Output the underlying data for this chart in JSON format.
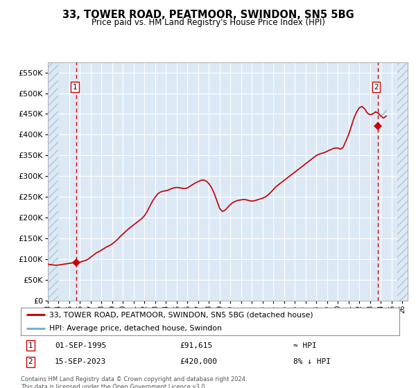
{
  "title": "33, TOWER ROAD, PEATMOOR, SWINDON, SN5 5BG",
  "subtitle": "Price paid vs. HM Land Registry's House Price Index (HPI)",
  "ylim": [
    0,
    575000
  ],
  "yticks": [
    0,
    50000,
    100000,
    150000,
    200000,
    250000,
    300000,
    350000,
    400000,
    450000,
    500000,
    550000
  ],
  "xlim_start": 1993.0,
  "xlim_end": 2026.5,
  "background_color": "#dce9f5",
  "hatch_color": "#aec6d8",
  "grid_color": "#ffffff",
  "line_color_hpi": "#cc0000",
  "line_color_hpi_index": "#7bafd4",
  "point1_x": 1995.67,
  "point1_y": 91615,
  "point2_x": 2023.71,
  "point2_y": 420000,
  "marker_color": "#cc0000",
  "vline_color": "#cc0000",
  "box_color": "#cc0000",
  "legend_line1": "33, TOWER ROAD, PEATMOOR, SWINDON, SN5 5BG (detached house)",
  "legend_line2": "HPI: Average price, detached house, Swindon",
  "annotation1_date": "01-SEP-1995",
  "annotation1_price": "£91,615",
  "annotation1_hpi": "≈ HPI",
  "annotation2_date": "15-SEP-2023",
  "annotation2_price": "£420,000",
  "annotation2_hpi": "8% ↓ HPI",
  "footer": "Contains HM Land Registry data © Crown copyright and database right 2024.\nThis data is licensed under the Open Government Licence v3.0.",
  "hpi_data_x": [
    1993.0,
    1993.25,
    1993.5,
    1993.75,
    1994.0,
    1994.25,
    1994.5,
    1994.75,
    1995.0,
    1995.25,
    1995.5,
    1995.75,
    1996.0,
    1996.25,
    1996.5,
    1996.75,
    1997.0,
    1997.25,
    1997.5,
    1997.75,
    1998.0,
    1998.25,
    1998.5,
    1998.75,
    1999.0,
    1999.25,
    1999.5,
    1999.75,
    2000.0,
    2000.25,
    2000.5,
    2000.75,
    2001.0,
    2001.25,
    2001.5,
    2001.75,
    2002.0,
    2002.25,
    2002.5,
    2002.75,
    2003.0,
    2003.25,
    2003.5,
    2003.75,
    2004.0,
    2004.25,
    2004.5,
    2004.75,
    2005.0,
    2005.25,
    2005.5,
    2005.75,
    2006.0,
    2006.25,
    2006.5,
    2006.75,
    2007.0,
    2007.25,
    2007.5,
    2007.75,
    2008.0,
    2008.25,
    2008.5,
    2008.75,
    2009.0,
    2009.25,
    2009.5,
    2009.75,
    2010.0,
    2010.25,
    2010.5,
    2010.75,
    2011.0,
    2011.25,
    2011.5,
    2011.75,
    2012.0,
    2012.25,
    2012.5,
    2012.75,
    2013.0,
    2013.25,
    2013.5,
    2013.75,
    2014.0,
    2014.25,
    2014.5,
    2014.75,
    2015.0,
    2015.25,
    2015.5,
    2015.75,
    2016.0,
    2016.25,
    2016.5,
    2016.75,
    2017.0,
    2017.25,
    2017.5,
    2017.75,
    2018.0,
    2018.25,
    2018.5,
    2018.75,
    2019.0,
    2019.25,
    2019.5,
    2019.75,
    2020.0,
    2020.25,
    2020.5,
    2020.75,
    2021.0,
    2021.25,
    2021.5,
    2021.75,
    2022.0,
    2022.25,
    2022.5,
    2022.75,
    2023.0,
    2023.25,
    2023.5,
    2023.75,
    2024.0,
    2024.25,
    2024.5
  ],
  "hpi_data_y": [
    88000,
    87000,
    86000,
    85500,
    86000,
    87000,
    88000,
    89000,
    90000,
    91000,
    91500,
    92000,
    93000,
    95000,
    97000,
    100000,
    105000,
    110000,
    115000,
    118000,
    122000,
    126000,
    130000,
    133000,
    137000,
    142000,
    148000,
    155000,
    161000,
    167000,
    173000,
    178000,
    183000,
    188000,
    193000,
    198000,
    205000,
    215000,
    228000,
    240000,
    250000,
    258000,
    262000,
    264000,
    265000,
    267000,
    270000,
    272000,
    273000,
    272000,
    271000,
    270000,
    272000,
    276000,
    280000,
    284000,
    287000,
    290000,
    291000,
    288000,
    282000,
    272000,
    258000,
    240000,
    222000,
    215000,
    218000,
    225000,
    232000,
    237000,
    240000,
    242000,
    243000,
    244000,
    243000,
    241000,
    240000,
    241000,
    243000,
    245000,
    247000,
    250000,
    255000,
    261000,
    268000,
    275000,
    280000,
    285000,
    290000,
    295000,
    300000,
    305000,
    310000,
    315000,
    320000,
    325000,
    330000,
    335000,
    340000,
    345000,
    350000,
    353000,
    355000,
    357000,
    360000,
    363000,
    366000,
    368000,
    368000,
    365000,
    370000,
    385000,
    400000,
    420000,
    440000,
    455000,
    465000,
    468000,
    462000,
    452000,
    448000,
    450000,
    455000,
    452000,
    445000,
    440000,
    445000
  ],
  "hpi_index_y": [
    88000,
    87000,
    86000,
    85500,
    86000,
    87000,
    88000,
    89000,
    90000,
    91000,
    91500,
    92000,
    93000,
    95000,
    97000,
    100000,
    105000,
    110000,
    115000,
    118000,
    122000,
    126000,
    130000,
    133000,
    137000,
    142000,
    148000,
    155000,
    161000,
    167000,
    173000,
    178000,
    183000,
    188000,
    193000,
    198000,
    205000,
    215000,
    228000,
    240000,
    250000,
    258000,
    262000,
    264000,
    265000,
    267000,
    270000,
    272000,
    273000,
    272000,
    271000,
    270000,
    272000,
    276000,
    280000,
    284000,
    287000,
    290000,
    291000,
    288000,
    282000,
    272000,
    258000,
    240000,
    222000,
    215000,
    218000,
    225000,
    232000,
    237000,
    240000,
    242000,
    243000,
    244000,
    243000,
    241000,
    240000,
    241000,
    243000,
    245000,
    247000,
    250000,
    255000,
    261000,
    268000,
    275000,
    280000,
    285000,
    290000,
    295000,
    300000,
    305000,
    310000,
    315000,
    320000,
    325000,
    330000,
    335000,
    340000,
    345000,
    350000,
    353000,
    355000,
    357000,
    360000,
    363000,
    366000,
    368000,
    368000,
    365000,
    370000,
    385000,
    400000,
    420000,
    440000,
    455000,
    465000,
    468000,
    462000,
    452000,
    448000,
    450000,
    455000,
    452000,
    445000,
    450000,
    458000
  ]
}
